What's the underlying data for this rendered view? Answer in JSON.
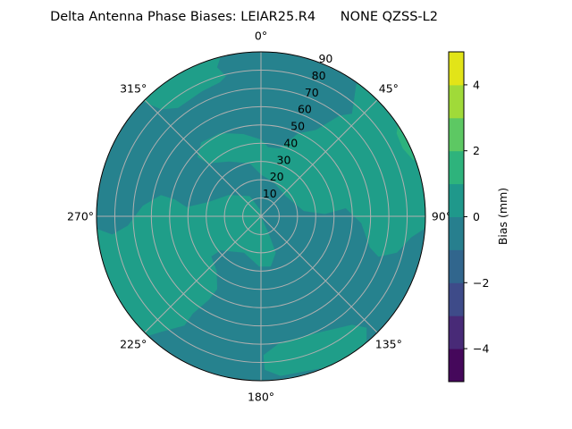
{
  "chart_data": {
    "type": "polar-contour",
    "title": "Delta Antenna Phase Biases: LEIAR25.R4      NONE QZSS-L2",
    "angular_axis": {
      "direction": "clockwise",
      "zero_location": "north",
      "tick_labels": [
        {
          "angle": 0,
          "label": "0°"
        },
        {
          "angle": 45,
          "label": "45°"
        },
        {
          "angle": 90,
          "label": "90°"
        },
        {
          "angle": 135,
          "label": "135°"
        },
        {
          "angle": 180,
          "label": "180°"
        },
        {
          "angle": 225,
          "label": "225°"
        },
        {
          "angle": 270,
          "label": "270°"
        },
        {
          "angle": 315,
          "label": "315°"
        }
      ]
    },
    "radial_axis": {
      "range": [
        0,
        90
      ],
      "ticks": [
        10,
        20,
        30,
        40,
        50,
        60,
        70,
        80,
        90
      ],
      "tick_labels": [
        "10",
        "20",
        "30",
        "40",
        "50",
        "60",
        "70",
        "80",
        "90"
      ],
      "label_angle": 22.5
    },
    "grid": true,
    "background_level": {
      "range": [
        -1,
        0
      ],
      "color": "#26828e"
    },
    "regions": [
      {
        "name": "west-center",
        "range": [
          0,
          1
        ],
        "color": "#1f9e89",
        "points": [
          [
            0,
            3
          ],
          [
            331,
            12.6
          ],
          [
            304,
            21
          ],
          [
            285,
            30
          ],
          [
            277,
            41
          ],
          [
            281,
            48
          ],
          [
            282,
            56
          ],
          [
            275,
            65
          ],
          [
            266,
            73
          ],
          [
            263,
            82
          ],
          [
            267,
            90
          ],
          [
            260,
            90
          ],
          [
            250,
            90
          ],
          [
            240,
            90
          ],
          [
            230,
            90
          ],
          [
            225,
            90
          ],
          [
            221,
            84
          ],
          [
            215,
            73
          ],
          [
            215,
            65
          ],
          [
            212,
            54
          ],
          [
            211,
            46.5
          ],
          [
            219,
            38.5
          ],
          [
            231,
            35
          ],
          [
            230,
            29
          ],
          [
            205,
            22
          ],
          [
            182,
            27.5
          ],
          [
            169,
            28
          ],
          [
            158,
            21.6
          ],
          [
            156,
            11.3
          ],
          [
            0,
            0
          ]
        ]
      },
      {
        "name": "north-east",
        "range": [
          0,
          1
        ],
        "color": "#1f9e89",
        "points": [
          [
            313,
            47.5
          ],
          [
            321,
            52
          ],
          [
            334,
            50.7
          ],
          [
            348,
            46
          ],
          [
            0,
            42
          ],
          [
            6,
            38
          ],
          [
            15.5,
            38.6
          ],
          [
            24,
            49.7
          ],
          [
            32.5,
            56
          ],
          [
            38,
            70
          ],
          [
            41.6,
            75
          ],
          [
            34,
            90
          ],
          [
            45,
            90
          ],
          [
            60,
            90
          ],
          [
            75,
            90
          ],
          [
            92,
            90
          ],
          [
            98,
            83
          ],
          [
            105,
            77
          ],
          [
            109,
            68
          ],
          [
            106,
            62
          ],
          [
            94,
            55
          ],
          [
            84.6,
            46.6
          ],
          [
            88,
            35
          ],
          [
            83,
            23.6
          ],
          [
            51,
            17.5
          ],
          [
            20,
            20
          ],
          [
            1,
            22.5
          ],
          [
            348,
            29.6
          ],
          [
            330,
            34.6
          ],
          [
            315,
            41
          ]
        ]
      },
      {
        "name": "north-west",
        "range": [
          0,
          1
        ],
        "color": "#1f9e89",
        "points": [
          [
            317,
            80
          ],
          [
            322.6,
            74.7
          ],
          [
            334.7,
            75.6
          ],
          [
            343,
            76.7
          ],
          [
            346,
            79
          ],
          [
            343.6,
            85
          ],
          [
            347.7,
            90
          ],
          [
            340,
            90
          ],
          [
            330,
            90
          ],
          [
            320,
            90
          ],
          [
            313,
            90
          ]
        ]
      },
      {
        "name": "south",
        "range": [
          0,
          1
        ],
        "color": "#1f9e89",
        "points": [
          [
            179,
            76
          ],
          [
            171.5,
            70
          ],
          [
            156,
            70.4
          ],
          [
            140,
            77.5
          ],
          [
            136.5,
            84
          ],
          [
            139.5,
            89
          ],
          [
            147.7,
            90
          ],
          [
            160,
            89
          ],
          [
            173,
            88
          ],
          [
            178.6,
            84
          ]
        ]
      },
      {
        "name": "east-rim",
        "range": [
          1,
          2
        ],
        "color": "#2db27d",
        "points": [
          [
            53,
            90
          ],
          [
            58.6,
            87
          ],
          [
            64.4,
            86
          ],
          [
            69.8,
            88.8
          ],
          [
            70,
            90
          ],
          [
            62,
            90
          ]
        ]
      }
    ],
    "colorbar": {
      "label": "Bias (mm)",
      "range": [
        -5,
        5
      ],
      "levels": [
        -5,
        -4,
        -3,
        -2,
        -1,
        0,
        1,
        2,
        3,
        4,
        5
      ],
      "colors": [
        "#45085b",
        "#482a77",
        "#3e4b89",
        "#31668d",
        "#277f8e",
        "#1f988b",
        "#2eb37c",
        "#5dc863",
        "#a0da39",
        "#e2e418"
      ],
      "ticks": [
        -4,
        -2,
        0,
        2,
        4
      ],
      "tick_labels": [
        "−4",
        "−2",
        "0",
        "2",
        "4"
      ]
    }
  }
}
